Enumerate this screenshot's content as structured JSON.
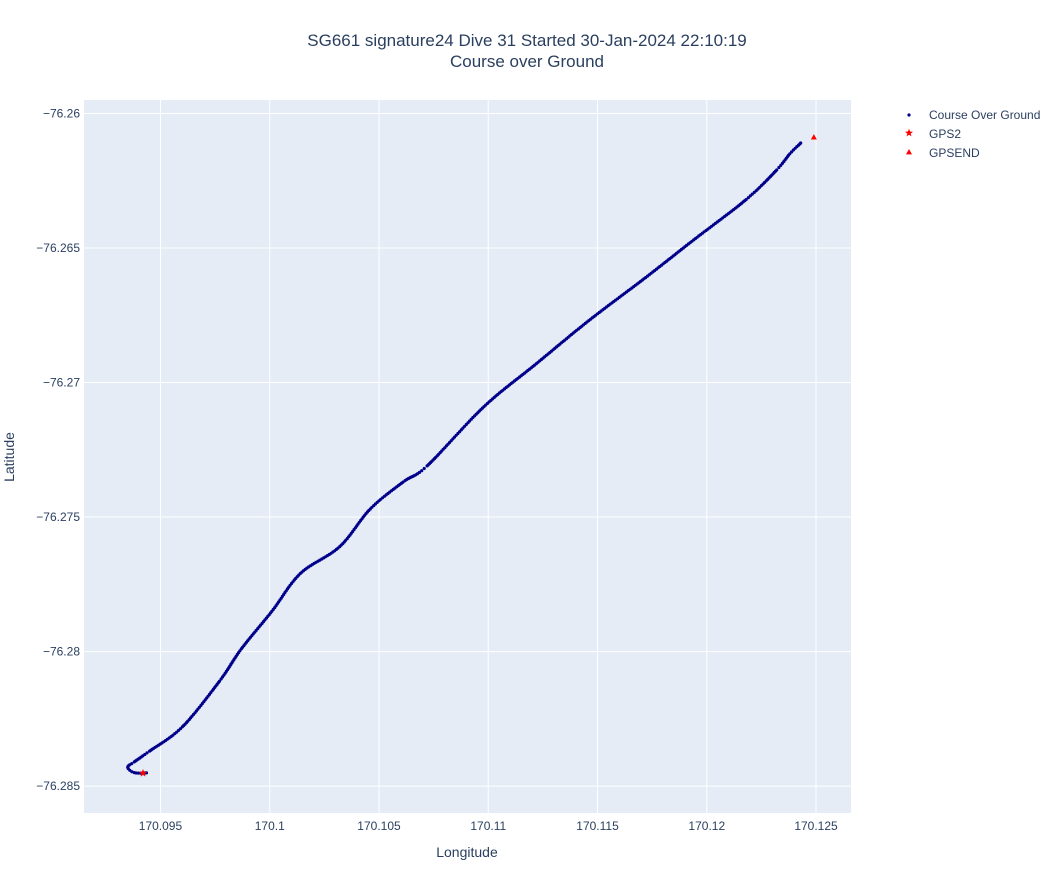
{
  "chart_data": {
    "type": "scatter",
    "title": "SG661 signature24 Dive 31 Started 30-Jan-2024 22:10:19",
    "subtitle": "Course over Ground",
    "xlabel": "Longitude",
    "ylabel": "Latitude",
    "xlim": [
      170.0915,
      170.1266
    ],
    "ylim": [
      -76.286,
      -76.2595
    ],
    "x_ticks": [
      170.095,
      170.1,
      170.105,
      170.11,
      170.115,
      170.12,
      170.125
    ],
    "x_tick_labels": [
      "170.095",
      "170.1",
      "170.105",
      "170.11",
      "170.115",
      "170.12",
      "170.125"
    ],
    "y_ticks": [
      -76.26,
      -76.265,
      -76.27,
      -76.275,
      -76.28,
      -76.285
    ],
    "y_tick_labels": [
      "−76.26",
      "−76.265",
      "−76.27",
      "−76.275",
      "−76.28",
      "−76.285"
    ],
    "grid": true,
    "legend_position": "top-right outside",
    "colors": {
      "plot_bg": "#e5ecf6",
      "grid": "#ffffff",
      "track": "#00008b",
      "marker": "#ff0000",
      "text": "#2a3f5f"
    },
    "series": [
      {
        "name": "Course Over Ground",
        "marker": "dot",
        "anchors": [
          [
            170.09436,
            -76.28451
          ],
          [
            170.0938,
            -76.2845
          ],
          [
            170.0935,
            -76.2843
          ],
          [
            170.0938,
            -76.2841
          ],
          [
            170.0945,
            -76.2837
          ],
          [
            170.096,
            -76.2828
          ],
          [
            170.0977,
            -76.2811
          ],
          [
            170.0987,
            -76.2799
          ],
          [
            170.1001,
            -76.2785
          ],
          [
            170.1014,
            -76.2771
          ],
          [
            170.1032,
            -76.2761
          ],
          [
            170.1046,
            -76.2747
          ],
          [
            170.1061,
            -76.2737
          ],
          [
            170.1072,
            -76.2731
          ],
          [
            170.1098,
            -76.2709
          ],
          [
            170.1122,
            -76.2693
          ],
          [
            170.1146,
            -76.2677
          ],
          [
            170.1172,
            -76.2661
          ],
          [
            170.1194,
            -76.2647
          ],
          [
            170.1218,
            -76.2632
          ],
          [
            170.1232,
            -76.2621
          ],
          [
            170.1238,
            -76.2615
          ],
          [
            170.1243,
            -76.2611
          ]
        ]
      },
      {
        "name": "GPS2",
        "marker": "star",
        "x": [
          170.0942
        ],
        "y": [
          -76.28452
        ]
      },
      {
        "name": "GPSEND",
        "marker": "triangle-up",
        "x": [
          170.1249
        ],
        "y": [
          -76.26088
        ]
      }
    ]
  }
}
